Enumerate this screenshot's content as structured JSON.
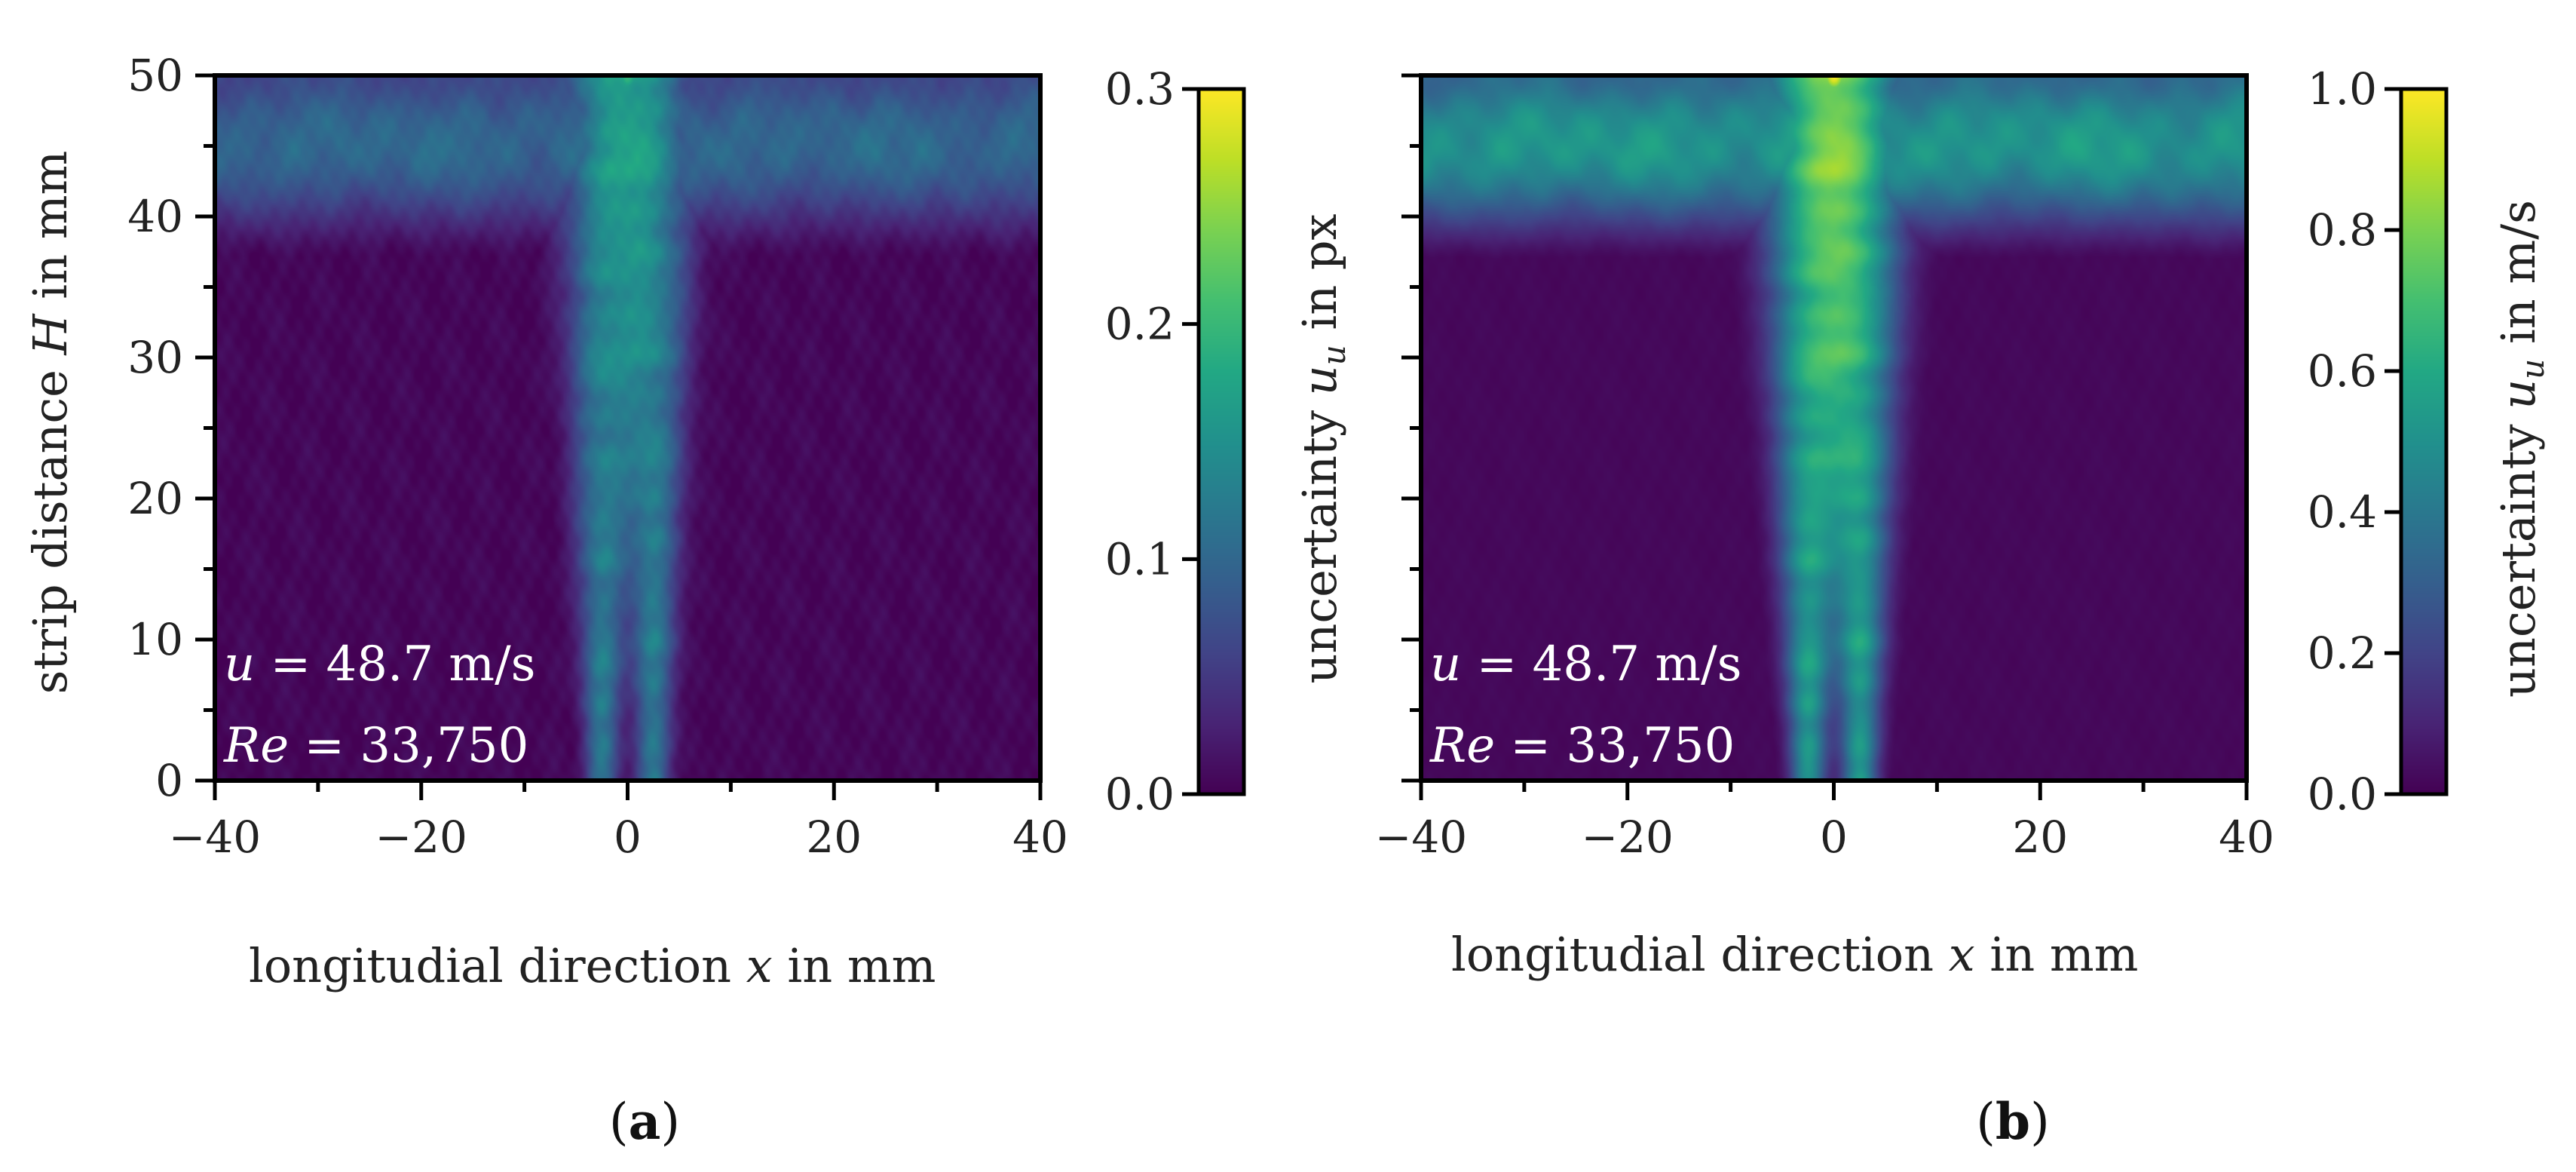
{
  "chart_data": [
    {
      "panel": "a",
      "type": "heatmap",
      "panel_label_open": "(",
      "panel_label_letter": "a",
      "panel_label_close": ")",
      "xlabel": "longitudial direction x in mm",
      "ylabel": "strip distance H in mm",
      "xlim": [
        -40,
        40
      ],
      "ylim": [
        0,
        50
      ],
      "xticks": [
        -40,
        -20,
        0,
        20,
        40
      ],
      "xtick_labels": [
        "−40",
        "−20",
        "0",
        "20",
        "40"
      ],
      "yticks": [
        0,
        10,
        20,
        30,
        40,
        50
      ],
      "ytick_labels": [
        "0",
        "10",
        "20",
        "30",
        "40",
        "50"
      ],
      "colorbar": {
        "label": "uncertainty u_u in px",
        "range": [
          0.0,
          0.3
        ],
        "ticks": [
          0.0,
          0.1,
          0.2,
          0.3
        ],
        "tick_labels": [
          "0.0",
          "0.1",
          "0.2",
          "0.3"
        ],
        "colormap": "viridis"
      },
      "annotations": [
        "u = 48.7 m/s",
        "Re = 33,750"
      ],
      "field_model": {
        "background": 0.005,
        "top_band": {
          "value": 0.12,
          "h_start": 36,
          "h_full": 45
        },
        "jets": [
          {
            "x": -2.5,
            "value": 0.14,
            "width": 1.6,
            "spread": 0.06
          },
          {
            "x": 2.5,
            "value": 0.14,
            "width": 1.6,
            "spread": 0.06
          }
        ],
        "top_center_peak": {
          "x": 0,
          "h": 50,
          "value": 0.2
        }
      }
    },
    {
      "panel": "b",
      "type": "heatmap",
      "panel_label_open": "(",
      "panel_label_letter": "b",
      "panel_label_close": ")",
      "xlabel": "longitudial direction x in mm",
      "ylabel": "",
      "xlim": [
        -40,
        40
      ],
      "ylim": [
        0,
        50
      ],
      "xticks": [
        -40,
        -20,
        0,
        20,
        40
      ],
      "xtick_labels": [
        "−40",
        "−20",
        "0",
        "20",
        "40"
      ],
      "yticks": [
        0,
        10,
        20,
        30,
        40,
        50
      ],
      "ytick_labels": [],
      "colorbar": {
        "label": "uncertainty u_u in m/s",
        "range": [
          0.0,
          1.0
        ],
        "ticks": [
          0.0,
          0.2,
          0.4,
          0.6,
          0.8,
          1.0
        ],
        "tick_labels": [
          "0.0",
          "0.2",
          "0.4",
          "0.6",
          "0.8",
          "1.0"
        ],
        "colormap": "viridis"
      },
      "annotations": [
        "u = 48.7 m/s",
        "Re = 33,750"
      ],
      "field_model": {
        "background": 0.02,
        "top_band": {
          "value": 0.62,
          "h_start": 36,
          "h_full": 45
        },
        "jets": [
          {
            "x": -2.5,
            "value": 0.62,
            "width": 1.7,
            "spread": 0.07
          },
          {
            "x": 2.5,
            "value": 0.62,
            "width": 1.7,
            "spread": 0.07
          }
        ],
        "top_center_peak": {
          "x": 0,
          "h": 50,
          "value": 1.0
        }
      }
    }
  ]
}
